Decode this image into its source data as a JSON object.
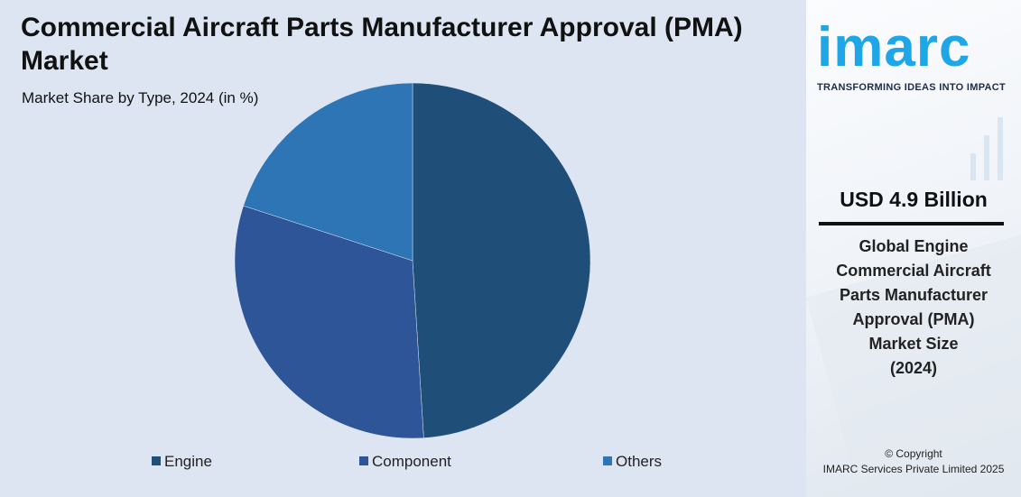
{
  "chart_data": {
    "type": "pie",
    "title": "Commercial Aircraft Parts Manufacturer Approval (PMA) Market",
    "subtitle": "Market Share by Type, 2024 (in %)",
    "categories": [
      "Engine",
      "Component",
      "Others"
    ],
    "values": [
      49,
      31,
      20
    ],
    "colors": [
      "#1f4e79",
      "#2e5597",
      "#2e75b6"
    ],
    "legend": "bottom"
  },
  "sidebar": {
    "logo": "imarc",
    "tagline": "TRANSFORMING IDEAS INTO IMPACT",
    "headline": "USD 4.9 Billion",
    "description": [
      "Global Engine",
      "Commercial Aircraft",
      "Parts Manufacturer",
      "Approval (PMA)",
      "Market Size",
      "(2024)"
    ],
    "copyright": [
      "© Copyright",
      "IMARC Services Private Limited 2025"
    ]
  }
}
